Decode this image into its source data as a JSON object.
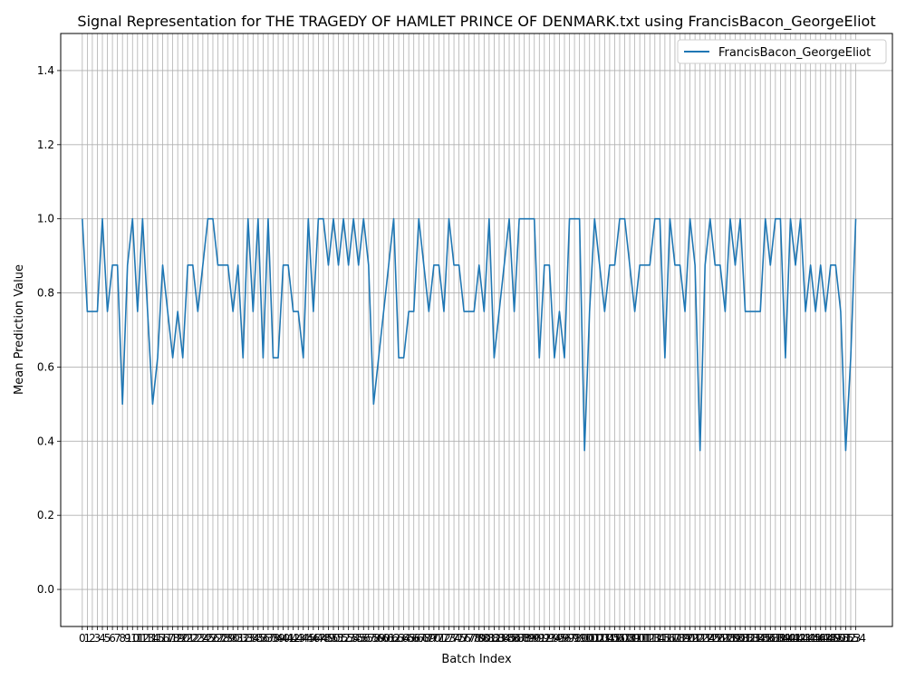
{
  "chart_data": {
    "type": "line",
    "title": "Signal Representation for THE TRAGEDY OF HAMLET PRINCE OF DENMARK.txt using FrancisBacon_GeorgeEliot",
    "xlabel": "Batch Index",
    "ylabel": "Mean Prediction Value",
    "ylim": [
      -0.1,
      1.5
    ],
    "xlim": [
      -4.3,
      161.3
    ],
    "yticks": [
      0.0,
      0.2,
      0.4,
      0.6,
      0.8,
      1.0,
      1.2,
      1.4
    ],
    "grid": true,
    "legend_position": "top-right",
    "series": [
      {
        "name": "FrancisBacon_GeorgeEliot",
        "color": "#1f77b4",
        "values": [
          1.0,
          0.75,
          0.75,
          0.75,
          1.0,
          0.75,
          0.875,
          0.875,
          0.5,
          0.875,
          1.0,
          0.75,
          1.0,
          0.75,
          0.5,
          0.625,
          0.875,
          0.75,
          0.625,
          0.75,
          0.625,
          0.875,
          0.875,
          0.75,
          0.875,
          1.0,
          1.0,
          0.875,
          0.875,
          0.875,
          0.75,
          0.875,
          0.625,
          1.0,
          0.75,
          1.0,
          0.625,
          1.0,
          0.625,
          0.625,
          0.875,
          0.875,
          0.75,
          0.75,
          0.625,
          1.0,
          0.75,
          1.0,
          1.0,
          0.875,
          1.0,
          0.875,
          1.0,
          0.875,
          1.0,
          0.875,
          1.0,
          0.875,
          0.5,
          0.625,
          0.75,
          0.875,
          1.0,
          0.625,
          0.625,
          0.75,
          0.75,
          1.0,
          0.875,
          0.75,
          0.875,
          0.875,
          0.75,
          1.0,
          0.875,
          0.875,
          0.75,
          0.75,
          0.75,
          0.875,
          0.75,
          1.0,
          0.625,
          0.75,
          0.875,
          1.0,
          0.75,
          1.0,
          1.0,
          1.0,
          1.0,
          0.625,
          0.875,
          0.875,
          0.625,
          0.75,
          0.625,
          1.0,
          1.0,
          1.0,
          0.375,
          0.75,
          1.0,
          0.875,
          0.75,
          0.875,
          0.875,
          1.0,
          1.0,
          0.875,
          0.75,
          0.875,
          0.875,
          0.875,
          1.0,
          1.0,
          0.625,
          1.0,
          0.875,
          0.875,
          0.75,
          1.0,
          0.875,
          0.375,
          0.875,
          1.0,
          0.875,
          0.875,
          0.75,
          1.0,
          0.875,
          1.0,
          0.75,
          0.75,
          0.75,
          0.75,
          1.0,
          0.875,
          1.0,
          1.0,
          0.625,
          1.0,
          0.875,
          1.0,
          0.75,
          0.875,
          0.75,
          0.875,
          0.75,
          0.875,
          0.875,
          0.75,
          0.375,
          0.625,
          1.0
        ]
      }
    ]
  }
}
